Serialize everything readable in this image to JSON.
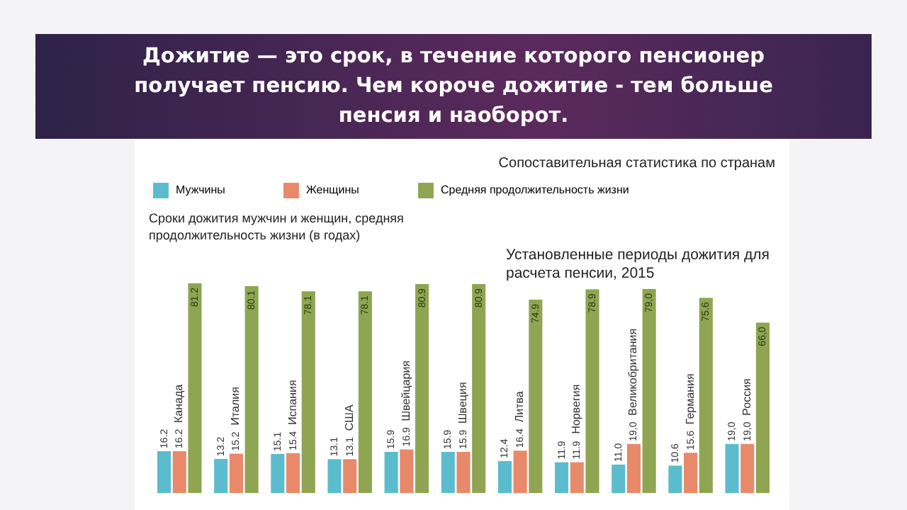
{
  "chart_data": {
    "type": "bar",
    "title": "Дожитие — это срок, в течение которого пенсионер получает пенсию. Чем короче дожитие - тем больше пенсия и наоборот.",
    "subtitle": "Сопоставительная статистика по странам",
    "annotations": [
      "Сроки дожития мужчин и женщин, средняя продолжительность жизни (в годах)",
      "Установленные периоды дожития для расчета пенсии, 2015"
    ],
    "categories": [
      "Канада",
      "Италия",
      "Испания",
      "США",
      "Швейцария",
      "Швеция",
      "Литва",
      "Норвегия",
      "Великобритания",
      "Германия",
      "Россия"
    ],
    "series": [
      {
        "name": "Мужчины",
        "color": "#5bbccd",
        "values": [
          16.2,
          13.2,
          15.1,
          13.1,
          15.9,
          15.9,
          12.4,
          11.9,
          11.0,
          10.6,
          19.0
        ],
        "value_labels": [
          "16.2",
          "13.2",
          "15.1",
          "13.1",
          "15.9",
          "15.9",
          "12.4",
          "11.9",
          "11,0",
          "10.6",
          "19,0"
        ]
      },
      {
        "name": "Женщины",
        "color": "#e8896a",
        "values": [
          16.2,
          15.2,
          15.4,
          13.1,
          16.9,
          15.9,
          16.4,
          11.9,
          19.0,
          15.6,
          19.0
        ],
        "value_labels": [
          "16.2",
          "15.2",
          "15.4",
          "13.1",
          "16.9",
          "15.9",
          "16.4",
          "11.9",
          "19,0",
          "15.6",
          "19,0"
        ]
      },
      {
        "name": "Средняя продолжительность жизни",
        "color": "#8fa552",
        "values": [
          81.2,
          80.1,
          78.1,
          78.1,
          80.9,
          80.9,
          74.9,
          78.9,
          79.0,
          75.6,
          66.0
        ],
        "value_labels": [
          "81.2",
          "80.1",
          "78.1",
          "78.1",
          "80.9",
          "80.9",
          "74.9",
          "78.9",
          "79,0",
          "75.6",
          "66,0"
        ]
      }
    ],
    "legend": "top left"
  }
}
